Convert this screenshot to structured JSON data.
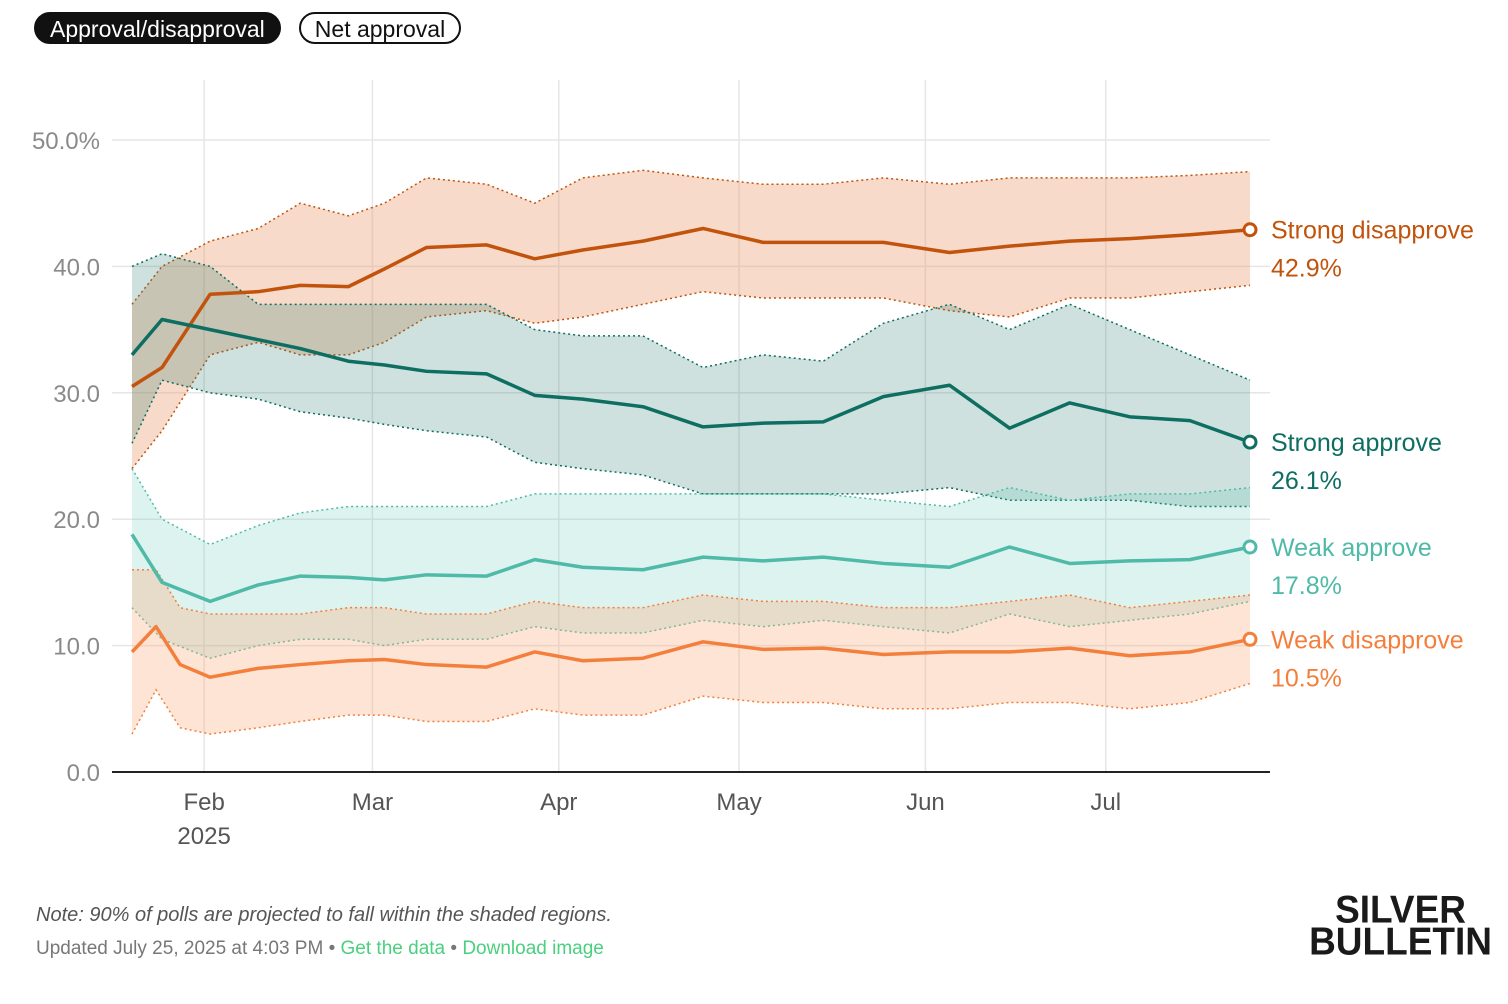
{
  "tabs": {
    "active": "Approval/disapproval",
    "inactive": "Net approval"
  },
  "note": "Note: 90% of polls are projected to fall within the shaded regions.",
  "footer": {
    "updated": "Updated July 25, 2025 at 4:03 PM",
    "separator": "•",
    "get_data": "Get the data",
    "download": "Download image"
  },
  "brand": {
    "line1": "SILVER",
    "line2": "BULLETIN"
  },
  "colors": {
    "strong_disapprove": "#c2530c",
    "weak_disapprove": "#f47f3c",
    "strong_approve": "#0e6e61",
    "weak_approve": "#4fbaa8",
    "accent_link": "#4ad07e"
  },
  "chart_data": {
    "type": "line",
    "x_start": "2025-01-20",
    "x_end": "2025-07-25",
    "ylim": [
      0,
      50
    ],
    "y_ticks": [
      {
        "value": 0,
        "label": "0.0"
      },
      {
        "value": 10,
        "label": "10.0"
      },
      {
        "value": 20,
        "label": "20.0"
      },
      {
        "value": 30,
        "label": "30.0"
      },
      {
        "value": 40,
        "label": "40.0"
      },
      {
        "value": 50,
        "label": "50.0%"
      }
    ],
    "x_ticks": [
      {
        "date": "2025-02-01",
        "label": "Feb",
        "sublabel": "2025"
      },
      {
        "date": "2025-03-01",
        "label": "Mar",
        "sublabel": ""
      },
      {
        "date": "2025-04-01",
        "label": "Apr",
        "sublabel": ""
      },
      {
        "date": "2025-05-01",
        "label": "May",
        "sublabel": ""
      },
      {
        "date": "2025-06-01",
        "label": "Jun",
        "sublabel": ""
      },
      {
        "date": "2025-07-01",
        "label": "Jul",
        "sublabel": ""
      }
    ],
    "grid": true,
    "legend": "right-end labels",
    "series": [
      {
        "key": "strong_disapprove",
        "name": "Strong disapprove",
        "end_label": "42.9%",
        "dates": [
          "2025-01-20",
          "2025-01-25",
          "2025-02-02",
          "2025-02-10",
          "2025-02-17",
          "2025-02-25",
          "2025-03-03",
          "2025-03-10",
          "2025-03-20",
          "2025-03-28",
          "2025-04-05",
          "2025-04-15",
          "2025-04-25",
          "2025-05-05",
          "2025-05-15",
          "2025-05-25",
          "2025-06-05",
          "2025-06-15",
          "2025-06-25",
          "2025-07-05",
          "2025-07-15",
          "2025-07-25"
        ],
        "values": [
          30.5,
          32.0,
          37.8,
          38.0,
          38.5,
          38.4,
          39.8,
          41.5,
          41.7,
          40.6,
          41.3,
          42.0,
          43.0,
          41.9,
          41.9,
          41.9,
          41.1,
          41.6,
          42.0,
          42.2,
          42.5,
          42.9
        ],
        "upper": [
          37.0,
          40.0,
          42.0,
          43.0,
          45.0,
          44.0,
          45.0,
          47.0,
          46.5,
          45.0,
          47.0,
          47.6,
          47.0,
          46.5,
          46.5,
          47.0,
          46.5,
          47.0,
          47.0,
          47.0,
          47.2,
          47.5
        ],
        "lower": [
          24.0,
          27.0,
          33.0,
          34.0,
          33.0,
          33.0,
          34.0,
          36.0,
          36.5,
          35.5,
          36.0,
          37.0,
          38.0,
          37.5,
          37.5,
          37.5,
          36.5,
          36.0,
          37.5,
          37.5,
          38.0,
          38.5
        ]
      },
      {
        "key": "strong_approve",
        "name": "Strong approve",
        "end_label": "26.1%",
        "dates": [
          "2025-01-20",
          "2025-01-25",
          "2025-02-02",
          "2025-02-10",
          "2025-02-17",
          "2025-02-25",
          "2025-03-03",
          "2025-03-10",
          "2025-03-20",
          "2025-03-28",
          "2025-04-05",
          "2025-04-15",
          "2025-04-25",
          "2025-05-05",
          "2025-05-15",
          "2025-05-25",
          "2025-06-05",
          "2025-06-15",
          "2025-06-25",
          "2025-07-05",
          "2025-07-15",
          "2025-07-25"
        ],
        "values": [
          33.0,
          35.8,
          35.0,
          34.2,
          33.5,
          32.5,
          32.2,
          31.7,
          31.5,
          29.8,
          29.5,
          28.9,
          27.3,
          27.6,
          27.7,
          29.7,
          30.6,
          27.2,
          29.2,
          28.1,
          27.8,
          26.1
        ],
        "upper": [
          40.0,
          41.0,
          40.0,
          37.0,
          37.0,
          37.0,
          37.0,
          37.0,
          37.0,
          35.0,
          34.5,
          34.5,
          32.0,
          33.0,
          32.5,
          35.5,
          37.0,
          35.0,
          37.0,
          35.0,
          33.0,
          31.0
        ],
        "lower": [
          26.0,
          31.0,
          30.0,
          29.5,
          28.5,
          28.0,
          27.5,
          27.0,
          26.5,
          24.5,
          24.0,
          23.5,
          22.0,
          22.0,
          22.0,
          22.0,
          22.5,
          21.5,
          21.5,
          21.5,
          21.0,
          21.0
        ]
      },
      {
        "key": "weak_approve",
        "name": "Weak approve",
        "end_label": "17.8%",
        "dates": [
          "2025-01-20",
          "2025-01-25",
          "2025-02-02",
          "2025-02-10",
          "2025-02-17",
          "2025-02-25",
          "2025-03-03",
          "2025-03-10",
          "2025-03-20",
          "2025-03-28",
          "2025-04-05",
          "2025-04-15",
          "2025-04-25",
          "2025-05-05",
          "2025-05-15",
          "2025-05-25",
          "2025-06-05",
          "2025-06-15",
          "2025-06-25",
          "2025-07-05",
          "2025-07-15",
          "2025-07-25"
        ],
        "values": [
          18.8,
          15.0,
          13.5,
          14.8,
          15.5,
          15.4,
          15.2,
          15.6,
          15.5,
          16.8,
          16.2,
          16.0,
          17.0,
          16.7,
          17.0,
          16.5,
          16.2,
          17.8,
          16.5,
          16.7,
          16.8,
          17.8
        ],
        "upper": [
          24.0,
          20.0,
          18.0,
          19.5,
          20.5,
          21.0,
          21.0,
          21.0,
          21.0,
          22.0,
          22.0,
          22.0,
          22.0,
          22.0,
          22.0,
          21.5,
          21.0,
          22.5,
          21.5,
          22.0,
          22.0,
          22.5
        ],
        "lower": [
          13.0,
          10.5,
          9.0,
          10.0,
          10.5,
          10.5,
          10.0,
          10.5,
          10.5,
          11.5,
          11.0,
          11.0,
          12.0,
          11.5,
          12.0,
          11.5,
          11.0,
          12.5,
          11.5,
          12.0,
          12.5,
          13.5
        ]
      },
      {
        "key": "weak_disapprove",
        "name": "Weak disapprove",
        "end_label": "10.5%",
        "dates": [
          "2025-01-20",
          "2025-01-24",
          "2025-01-28",
          "2025-02-02",
          "2025-02-10",
          "2025-02-17",
          "2025-02-25",
          "2025-03-03",
          "2025-03-10",
          "2025-03-20",
          "2025-03-28",
          "2025-04-05",
          "2025-04-15",
          "2025-04-25",
          "2025-05-05",
          "2025-05-15",
          "2025-05-25",
          "2025-06-05",
          "2025-06-15",
          "2025-06-25",
          "2025-07-05",
          "2025-07-15",
          "2025-07-25"
        ],
        "values": [
          9.5,
          11.5,
          8.5,
          7.5,
          8.2,
          8.5,
          8.8,
          8.9,
          8.5,
          8.3,
          9.5,
          8.8,
          9.0,
          10.3,
          9.7,
          9.8,
          9.3,
          9.5,
          9.5,
          9.8,
          9.2,
          9.5,
          10.5
        ],
        "upper": [
          16.0,
          16.0,
          13.0,
          12.5,
          12.5,
          12.5,
          13.0,
          13.0,
          12.5,
          12.5,
          13.5,
          13.0,
          13.0,
          14.0,
          13.5,
          13.5,
          13.0,
          13.0,
          13.5,
          14.0,
          13.0,
          13.5,
          14.0
        ],
        "lower": [
          3.0,
          6.5,
          3.5,
          3.0,
          3.5,
          4.0,
          4.5,
          4.5,
          4.0,
          4.0,
          5.0,
          4.5,
          4.5,
          6.0,
          5.5,
          5.5,
          5.0,
          5.0,
          5.5,
          5.5,
          5.0,
          5.5,
          7.0
        ]
      }
    ]
  }
}
